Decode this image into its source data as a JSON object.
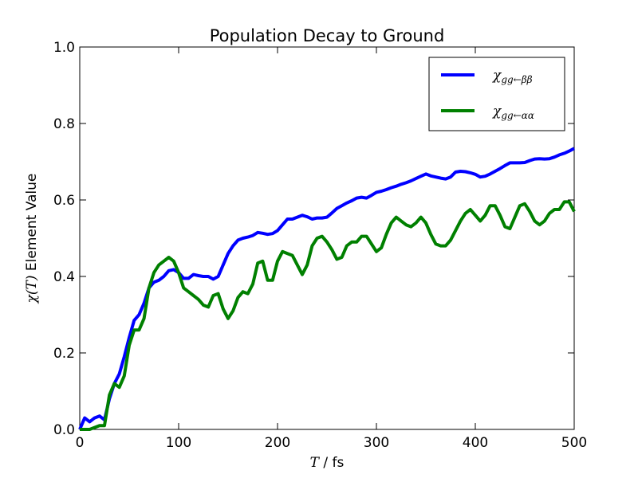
{
  "chart_data": {
    "type": "line",
    "title": "Population Decay to Ground",
    "xlabel_math": "T",
    "xlabel_unit": " / fs",
    "ylabel_math": "χ(T)",
    "ylabel_text": " Element Value",
    "xlim": [
      0,
      500
    ],
    "ylim": [
      0,
      1
    ],
    "x_ticks": [
      "0",
      "100",
      "200",
      "300",
      "400",
      "500"
    ],
    "y_ticks": [
      "0.0",
      "0.2",
      "0.4",
      "0.6",
      "0.8",
      "1.0"
    ],
    "grid": false,
    "legend_position": "top-right",
    "series": [
      {
        "name": "χgg←ββ",
        "legend_main": "χ",
        "legend_sub": "gg←ββ",
        "color": "#0000ff",
        "x": [
          0,
          5,
          10,
          15,
          20,
          25,
          30,
          35,
          40,
          45,
          50,
          55,
          60,
          65,
          70,
          75,
          80,
          85,
          90,
          95,
          100,
          105,
          110,
          115,
          120,
          125,
          130,
          135,
          140,
          145,
          150,
          155,
          160,
          165,
          170,
          175,
          180,
          185,
          190,
          195,
          200,
          205,
          210,
          215,
          220,
          225,
          230,
          235,
          240,
          245,
          250,
          255,
          260,
          265,
          270,
          275,
          280,
          285,
          290,
          295,
          300,
          305,
          310,
          315,
          320,
          325,
          330,
          335,
          340,
          345,
          350,
          355,
          360,
          365,
          370,
          375,
          380,
          385,
          390,
          395,
          400,
          405,
          410,
          415,
          420,
          425,
          430,
          435,
          440,
          445,
          450,
          455,
          460,
          465,
          470,
          475,
          480,
          485,
          490,
          495,
          500
        ],
        "y": [
          0.0,
          0.03,
          0.02,
          0.03,
          0.035,
          0.025,
          0.08,
          0.12,
          0.145,
          0.19,
          0.24,
          0.285,
          0.3,
          0.33,
          0.37,
          0.385,
          0.39,
          0.4,
          0.415,
          0.418,
          0.41,
          0.395,
          0.395,
          0.405,
          0.402,
          0.4,
          0.4,
          0.393,
          0.4,
          0.43,
          0.46,
          0.48,
          0.495,
          0.5,
          0.503,
          0.507,
          0.515,
          0.513,
          0.51,
          0.512,
          0.52,
          0.535,
          0.55,
          0.55,
          0.555,
          0.56,
          0.556,
          0.55,
          0.553,
          0.553,
          0.555,
          0.566,
          0.578,
          0.585,
          0.592,
          0.598,
          0.605,
          0.607,
          0.605,
          0.612,
          0.62,
          0.623,
          0.627,
          0.632,
          0.636,
          0.641,
          0.645,
          0.65,
          0.656,
          0.662,
          0.668,
          0.663,
          0.66,
          0.657,
          0.655,
          0.66,
          0.673,
          0.675,
          0.674,
          0.671,
          0.667,
          0.66,
          0.662,
          0.668,
          0.675,
          0.682,
          0.69,
          0.697,
          0.697,
          0.697,
          0.698,
          0.703,
          0.707,
          0.708,
          0.707,
          0.708,
          0.712,
          0.718,
          0.722,
          0.728,
          0.735
        ]
      },
      {
        "name": "χgg←αα",
        "legend_main": "χ",
        "legend_sub": "gg←αα",
        "color": "#008000",
        "x": [
          0,
          5,
          10,
          15,
          20,
          25,
          30,
          35,
          40,
          45,
          50,
          55,
          60,
          65,
          70,
          75,
          80,
          85,
          90,
          95,
          100,
          105,
          110,
          115,
          120,
          125,
          130,
          135,
          140,
          145,
          150,
          155,
          160,
          165,
          170,
          175,
          180,
          185,
          190,
          195,
          200,
          205,
          210,
          215,
          220,
          225,
          230,
          235,
          240,
          245,
          250,
          255,
          260,
          265,
          270,
          275,
          280,
          285,
          290,
          295,
          300,
          305,
          310,
          315,
          320,
          325,
          330,
          335,
          340,
          345,
          350,
          355,
          360,
          365,
          370,
          375,
          380,
          385,
          390,
          395,
          400,
          405,
          410,
          415,
          420,
          425,
          430,
          435,
          440,
          445,
          450,
          455,
          460,
          465,
          470,
          475,
          480,
          485,
          490,
          495,
          500
        ],
        "y": [
          0.0,
          0.0,
          0.0,
          0.005,
          0.01,
          0.01,
          0.09,
          0.12,
          0.11,
          0.14,
          0.22,
          0.26,
          0.26,
          0.29,
          0.37,
          0.41,
          0.43,
          0.44,
          0.45,
          0.44,
          0.41,
          0.37,
          0.36,
          0.35,
          0.34,
          0.325,
          0.32,
          0.35,
          0.355,
          0.315,
          0.29,
          0.31,
          0.345,
          0.36,
          0.355,
          0.38,
          0.435,
          0.44,
          0.39,
          0.39,
          0.44,
          0.465,
          0.46,
          0.455,
          0.43,
          0.405,
          0.43,
          0.48,
          0.5,
          0.505,
          0.49,
          0.47,
          0.445,
          0.45,
          0.48,
          0.49,
          0.49,
          0.505,
          0.505,
          0.485,
          0.465,
          0.475,
          0.51,
          0.54,
          0.555,
          0.545,
          0.535,
          0.53,
          0.54,
          0.555,
          0.54,
          0.51,
          0.485,
          0.48,
          0.48,
          0.495,
          0.52,
          0.545,
          0.565,
          0.575,
          0.56,
          0.545,
          0.56,
          0.585,
          0.585,
          0.56,
          0.53,
          0.525,
          0.555,
          0.585,
          0.59,
          0.57,
          0.545,
          0.535,
          0.545,
          0.565,
          0.575,
          0.575,
          0.595,
          0.595,
          0.57
        ]
      }
    ]
  }
}
